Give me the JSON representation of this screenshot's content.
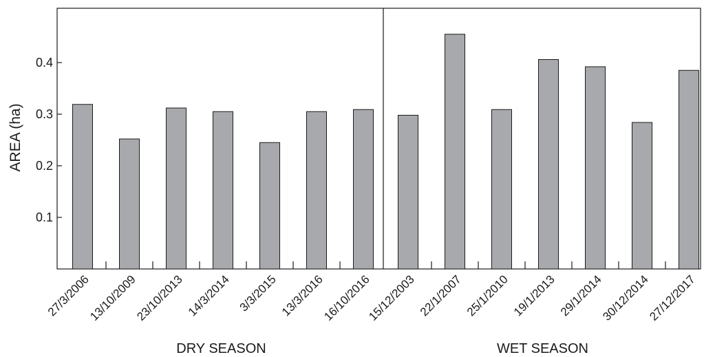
{
  "chart_data": {
    "type": "bar",
    "ylabel": "AREA (ha)",
    "xlabel": "",
    "ylim": [
      0,
      0.5
    ],
    "yticks": [
      0.1,
      0.2,
      0.3,
      0.4
    ],
    "grid": false,
    "bar_color": "#a7a9ac",
    "groups": [
      {
        "label": "DRY SEASON",
        "categories": [
          "27/3/2006",
          "13/10/2009",
          "23/10/2013",
          "14/3/2014",
          "3/3/2015",
          "13/3/2016",
          "16/10/2016"
        ],
        "values": [
          0.319,
          0.252,
          0.312,
          0.305,
          0.245,
          0.305,
          0.309
        ]
      },
      {
        "label": "WET SEASON",
        "categories": [
          "15/12/2003",
          "22/1/2007",
          "25/1/2010",
          "19/1/2013",
          "29/1/2014",
          "30/12/2014",
          "27/12/2017"
        ],
        "values": [
          0.298,
          0.455,
          0.309,
          0.406,
          0.392,
          0.284,
          0.385
        ]
      }
    ]
  }
}
